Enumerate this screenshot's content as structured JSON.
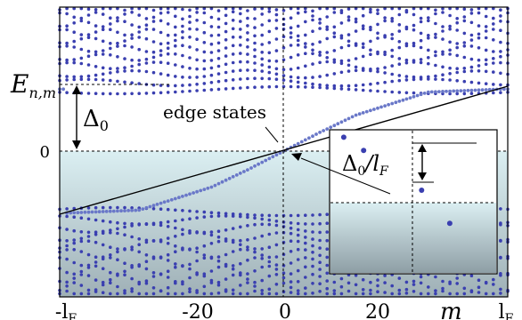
{
  "chart_data": {
    "type": "scatter",
    "title": "",
    "xlabel": "m",
    "ylabel": "E",
    "ylabel_sub": "n,m",
    "x_ticks": [
      {
        "label": "-l",
        "sub": "F"
      },
      {
        "label": "-20",
        "sub": ""
      },
      {
        "label": "0",
        "sub": ""
      },
      {
        "label": "20",
        "sub": ""
      },
      {
        "label": "l",
        "sub": "F"
      }
    ],
    "y_ticks": [
      "0"
    ],
    "gap_label": "Δ",
    "gap_label_sub": "0",
    "edge_label": "edge states",
    "inset_label": "Δ",
    "inset_label_sub": "0",
    "inset_label_tail": "/l",
    "inset_label_tail_sub": "F",
    "x_range": [
      -31,
      31
    ],
    "y_range": [
      -1.0,
      1.0
    ],
    "gap": 0.42,
    "series": [
      {
        "values": [
          [
            -30,
            -0.43
          ],
          [
            -20,
            -0.41
          ],
          [
            -10,
            -0.25
          ],
          [
            -5,
            -0.13
          ],
          [
            0,
            0.0
          ],
          [
            5,
            0.13
          ],
          [
            10,
            0.25
          ],
          [
            20,
            0.41
          ],
          [
            30,
            0.43
          ]
        ]
      }
    ],
    "inset_points": [
      [
        0.72,
        0.3
      ],
      [
        0.55,
        0.55
      ],
      [
        0.2,
        0.85
      ],
      [
        0.08,
        0.95
      ]
    ],
    "colors": {
      "dots": "#3a3fb0",
      "edge_dots": "#6a78c8",
      "shade_top": "#dbeff2",
      "shade_bottom": "#9fb0b6",
      "line": "#000000"
    }
  }
}
